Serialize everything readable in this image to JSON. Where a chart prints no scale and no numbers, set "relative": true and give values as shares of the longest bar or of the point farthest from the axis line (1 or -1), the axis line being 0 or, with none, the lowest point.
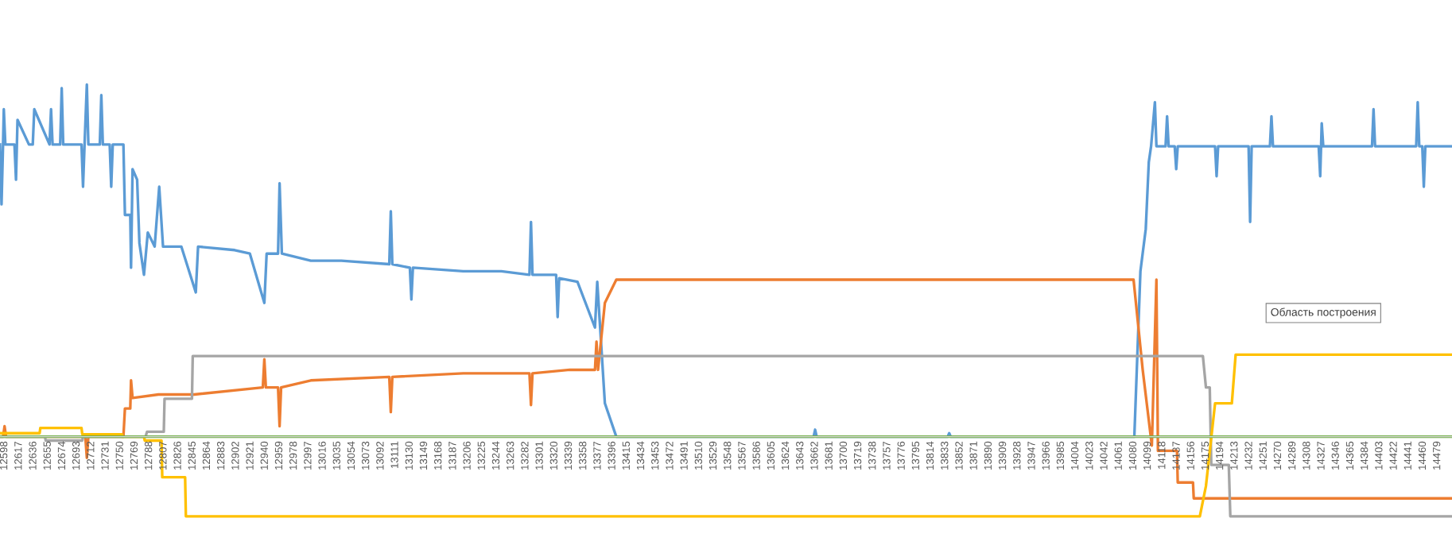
{
  "chart_data": {
    "type": "line",
    "relative": true,
    "legend": false,
    "xlim": [
      12592,
      14498
    ],
    "xticks": [
      12598,
      12617,
      12636,
      12655,
      12674,
      12693,
      12712,
      12731,
      12750,
      12769,
      12788,
      12807,
      12826,
      12845,
      12864,
      12883,
      12902,
      12921,
      12940,
      12959,
      12978,
      12997,
      13016,
      13035,
      13054,
      13073,
      13092,
      13111,
      13130,
      13149,
      13168,
      13187,
      13206,
      13225,
      13244,
      13263,
      13282,
      13301,
      13320,
      13339,
      13358,
      13377,
      13396,
      13415,
      13434,
      13453,
      13472,
      13491,
      13510,
      13529,
      13548,
      13567,
      13586,
      13605,
      13624,
      13643,
      13662,
      13681,
      13700,
      13719,
      13738,
      13757,
      13776,
      13795,
      13814,
      13833,
      13852,
      13871,
      13890,
      13909,
      13928,
      13947,
      13966,
      13985,
      14004,
      14023,
      14042,
      14061,
      14080,
      14099,
      14118,
      14137,
      14156,
      14175,
      14194,
      14213,
      14232,
      14251,
      14270,
      14289,
      14308,
      14327,
      14346,
      14365,
      14384,
      14403,
      14422,
      14441,
      14460,
      14479
    ],
    "annotations": [
      "Область построения"
    ],
    "series": [
      {
        "color": "#5b9bd5",
        "x": [
          12592,
          12594,
          12596,
          12597,
          12599,
          12611,
          12613,
          12615,
          12630,
          12635,
          12637,
          12657,
          12659,
          12661,
          12671,
          12673,
          12675,
          12699,
          12701,
          12703,
          12706,
          12708,
          12723,
          12725,
          12727,
          12736,
          12738,
          12740,
          12754,
          12756,
          12763,
          12764,
          12766,
          12772,
          12775,
          12781,
          12786,
          12795,
          12801,
          12806,
          12830,
          12849,
          12852,
          12900,
          12920,
          12939,
          12942,
          12957,
          12959,
          12962,
          13000,
          13040,
          13103,
          13105,
          13107,
          13130,
          13132,
          13134,
          13200,
          13250,
          13287,
          13289,
          13291,
          13322,
          13324,
          13326,
          13350,
          13373,
          13376,
          13386,
          13401,
          13660,
          13662,
          13664,
          13836,
          13838,
          13840,
          14081,
          14089,
          14096,
          14100,
          14103,
          14108,
          14110,
          14122,
          14124,
          14126,
          14134,
          14136,
          14138,
          14187,
          14189,
          14191,
          14231,
          14233,
          14235,
          14259,
          14261,
          14263,
          14323,
          14325,
          14327,
          14329,
          14393,
          14395,
          14397,
          14451,
          14453,
          14455,
          14459,
          14461,
          14463,
          14498
        ],
        "values": [
          0.83,
          0.66,
          0.83,
          0.93,
          0.83,
          0.83,
          0.73,
          0.9,
          0.83,
          0.83,
          0.93,
          0.83,
          0.93,
          0.83,
          0.83,
          0.99,
          0.83,
          0.83,
          0.71,
          0.83,
          1.0,
          0.83,
          0.83,
          0.97,
          0.83,
          0.83,
          0.71,
          0.83,
          0.83,
          0.63,
          0.63,
          0.48,
          0.76,
          0.73,
          0.55,
          0.46,
          0.58,
          0.54,
          0.71,
          0.54,
          0.54,
          0.41,
          0.54,
          0.53,
          0.52,
          0.38,
          0.52,
          0.52,
          0.72,
          0.52,
          0.5,
          0.5,
          0.49,
          0.64,
          0.49,
          0.48,
          0.39,
          0.48,
          0.47,
          0.47,
          0.46,
          0.61,
          0.46,
          0.46,
          0.34,
          0.45,
          0.44,
          0.31,
          0.44,
          0.095,
          0,
          0,
          0.02,
          0,
          0,
          0.01,
          0,
          0,
          0.47,
          0.59,
          0.78,
          0.825,
          0.95,
          0.825,
          0.825,
          0.91,
          0.825,
          0.825,
          0.76,
          0.825,
          0.825,
          0.74,
          0.825,
          0.825,
          0.61,
          0.825,
          0.825,
          0.91,
          0.825,
          0.825,
          0.74,
          0.89,
          0.825,
          0.825,
          0.93,
          0.825,
          0.825,
          0.95,
          0.825,
          0.825,
          0.71,
          0.825,
          0.825
        ]
      },
      {
        "color": "#ed7d31",
        "x": [
          12592,
          12596,
          12598,
          12600,
          12704,
          12706,
          12708,
          12754,
          12756,
          12763,
          12764,
          12766,
          12800,
          12847,
          12937,
          12939,
          12941,
          12957,
          12959,
          12961,
          13000,
          13103,
          13105,
          13107,
          13200,
          13287,
          13289,
          13291,
          13340,
          13373,
          13375,
          13377,
          13386,
          13401,
          14080,
          14092,
          14104,
          14110,
          14112,
          14137,
          14138,
          14158,
          14159,
          14498
        ],
        "values": [
          0,
          0,
          0.03,
          0,
          0,
          -0.06,
          0,
          0,
          0.08,
          0.08,
          0.16,
          0.11,
          0.12,
          0.12,
          0.14,
          0.22,
          0.14,
          0.14,
          0.03,
          0.14,
          0.16,
          0.17,
          0.07,
          0.17,
          0.18,
          0.18,
          0.09,
          0.18,
          0.19,
          0.19,
          0.27,
          0.19,
          0.38,
          0.446,
          0.446,
          0.19,
          -0.025,
          0.446,
          -0.04,
          -0.04,
          -0.13,
          -0.13,
          -0.175,
          -0.175
        ]
      },
      {
        "color": "#a5a5a5",
        "x": [
          12592,
          12651,
          12652,
          12700,
          12701,
          12783,
          12785,
          12807,
          12808,
          12844,
          12845,
          14171,
          14175,
          14180,
          14182,
          14205,
          14207,
          14498
        ],
        "values": [
          0,
          0,
          -0.011,
          -0.011,
          0,
          0,
          0.014,
          0.014,
          0.108,
          0.108,
          0.229,
          0.229,
          0.14,
          0.14,
          -0.08,
          -0.08,
          -0.226,
          -0.226
        ]
      },
      {
        "color": "#ffc000",
        "x": [
          12592,
          12644,
          12645,
          12699,
          12700,
          12752,
          12753,
          12781,
          12782,
          12804,
          12805,
          12835,
          12836,
          14167,
          14175,
          14187,
          14209,
          14214,
          14498
        ],
        "values": [
          0.01,
          0.01,
          0.025,
          0.025,
          0.007,
          0.007,
          0,
          0,
          -0.011,
          -0.011,
          -0.115,
          -0.115,
          -0.226,
          -0.226,
          -0.14,
          0.095,
          0.095,
          0.233,
          0.233
        ]
      },
      {
        "color": "#70ad47",
        "x": [
          12592,
          14498
        ],
        "values": [
          0,
          0
        ]
      }
    ]
  }
}
